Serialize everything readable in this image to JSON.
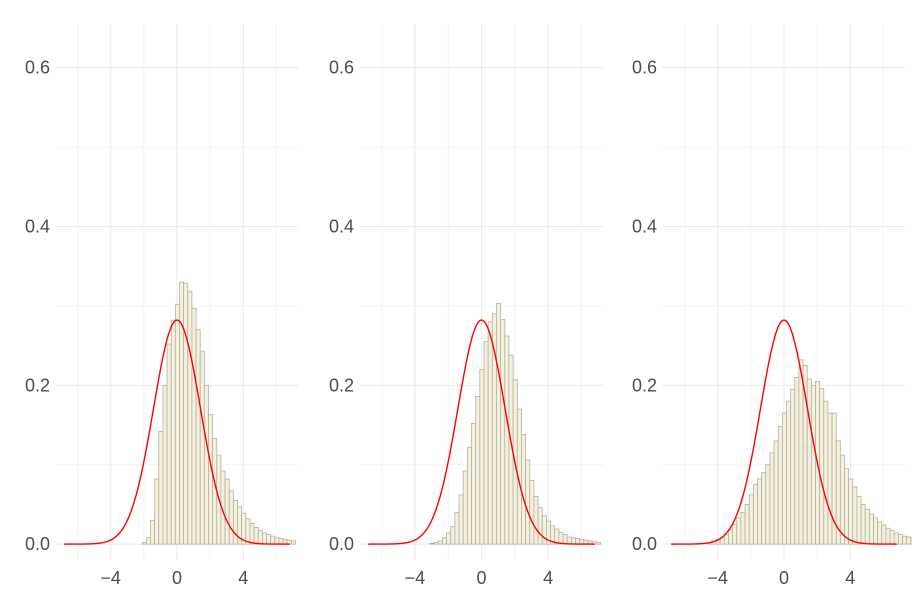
{
  "chart_data": [
    {
      "type": "bar",
      "subtype": "histogram-with-density-curve",
      "title": "",
      "xlabel": "",
      "ylabel": "",
      "xlim": [
        -7.3,
        7.3
      ],
      "ylim": [
        -0.02,
        0.655
      ],
      "xticks": [
        -4,
        0,
        4
      ],
      "xtick_labels": [
        "−4",
        "0",
        "4"
      ],
      "yticks": [
        0.0,
        0.2,
        0.4,
        0.6
      ],
      "ytick_labels": [
        "0.0",
        "0.2",
        "0.4",
        "0.6"
      ],
      "grid": true,
      "bin_width": 0.25,
      "bins_start": -6.6,
      "histogram_values": [
        0,
        0,
        0,
        0,
        0,
        0,
        0,
        0,
        0,
        0,
        0,
        0,
        0,
        0,
        0,
        0,
        0,
        0,
        0.002,
        0.008,
        0.03,
        0.082,
        0.142,
        0.2,
        0.252,
        0.282,
        0.302,
        0.33,
        0.328,
        0.318,
        0.297,
        0.27,
        0.243,
        0.2,
        0.163,
        0.133,
        0.112,
        0.092,
        0.082,
        0.067,
        0.055,
        0.047,
        0.039,
        0.032,
        0.026,
        0.021,
        0.017,
        0.014,
        0.012,
        0.01,
        0.008,
        0.007,
        0.006,
        0.005,
        0.004
      ],
      "curve": {
        "type": "normal-density",
        "mean": 0,
        "sd": 1.414,
        "color": "#ff0000"
      },
      "bar_fill": "#f5f0dc",
      "bar_stroke": "#b3b3a5"
    },
    {
      "type": "bar",
      "subtype": "histogram-with-density-curve",
      "title": "",
      "xlabel": "",
      "ylabel": "",
      "xlim": [
        -7.3,
        7.3
      ],
      "ylim": [
        -0.02,
        0.655
      ],
      "xticks": [
        -4,
        0,
        4
      ],
      "xtick_labels": [
        "−4",
        "0",
        "4"
      ],
      "yticks": [
        0.0,
        0.2,
        0.4,
        0.6
      ],
      "ytick_labels": [
        "0.0",
        "0.2",
        "0.4",
        "0.6"
      ],
      "grid": true,
      "bin_width": 0.25,
      "bins_start": -6.6,
      "histogram_values": [
        0,
        0,
        0,
        0,
        0,
        0,
        0,
        0,
        0,
        0,
        0,
        0,
        0,
        0,
        0.001,
        0.002,
        0.004,
        0.008,
        0.014,
        0.022,
        0.04,
        0.062,
        0.092,
        0.122,
        0.152,
        0.186,
        0.22,
        0.255,
        0.28,
        0.29,
        0.303,
        0.283,
        0.262,
        0.238,
        0.207,
        0.17,
        0.138,
        0.106,
        0.08,
        0.06,
        0.046,
        0.036,
        0.029,
        0.023,
        0.019,
        0.015,
        0.012,
        0.009,
        0.008,
        0.007,
        0.006,
        0.005,
        0.004,
        0.003,
        0.002
      ],
      "curve": {
        "type": "normal-density",
        "mean": 0,
        "sd": 1.414,
        "color": "#ff0000"
      },
      "bar_fill": "#f5f0dc",
      "bar_stroke": "#b3b3a5"
    },
    {
      "type": "bar",
      "subtype": "histogram-with-density-curve",
      "title": "",
      "xlabel": "",
      "ylabel": "",
      "xlim": [
        -7.3,
        7.3
      ],
      "ylim": [
        -0.02,
        0.655
      ],
      "xticks": [
        -4,
        0,
        4
      ],
      "xtick_labels": [
        "−4",
        "0",
        "4"
      ],
      "yticks": [
        0.0,
        0.2,
        0.4,
        0.6
      ],
      "ytick_labels": [
        "0.0",
        "0.2",
        "0.4",
        "0.6"
      ],
      "grid": true,
      "bin_width": 0.25,
      "bins_start": -6.6,
      "histogram_values": [
        0,
        0,
        0,
        0,
        0,
        0,
        0,
        0,
        0.002,
        0.004,
        0.006,
        0.008,
        0.012,
        0.018,
        0.025,
        0.033,
        0.04,
        0.05,
        0.062,
        0.075,
        0.082,
        0.09,
        0.1,
        0.115,
        0.13,
        0.148,
        0.165,
        0.18,
        0.195,
        0.21,
        0.232,
        0.225,
        0.208,
        0.2,
        0.205,
        0.196,
        0.18,
        0.165,
        0.165,
        0.13,
        0.112,
        0.095,
        0.082,
        0.072,
        0.06,
        0.05,
        0.044,
        0.038,
        0.033,
        0.028,
        0.024,
        0.02,
        0.017,
        0.014,
        0.012,
        0.01,
        0.009,
        0.008
      ],
      "curve": {
        "type": "normal-density",
        "mean": 0,
        "sd": 1.414,
        "color": "#ff0000"
      },
      "bar_fill": "#f5f0dc",
      "bar_stroke": "#b3b3a5"
    }
  ],
  "colors": {
    "background": "#ffffff",
    "grid_major": "#ebebeb",
    "grid_minor": "#f4f4f4",
    "tick_text": "#4d4d4d"
  }
}
